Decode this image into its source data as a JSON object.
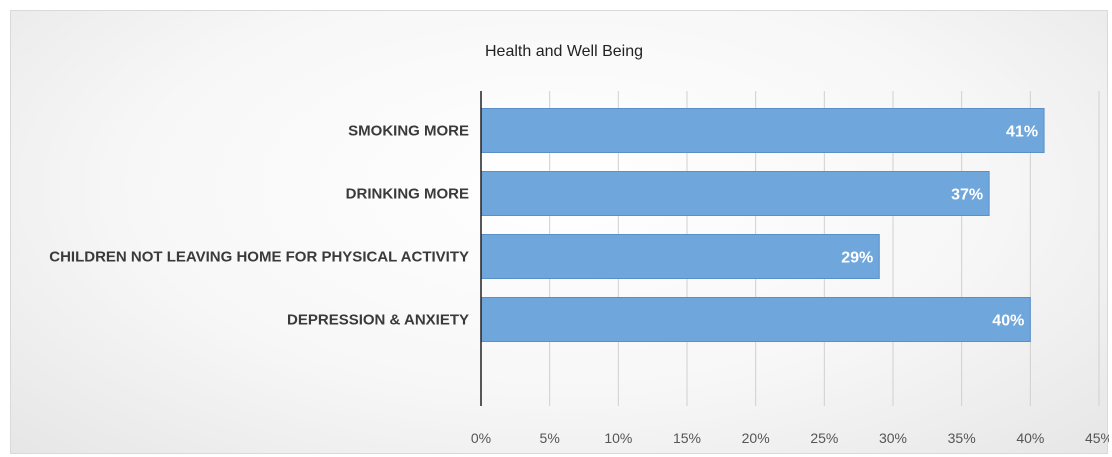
{
  "chart_data": {
    "type": "bar",
    "orientation": "horizontal",
    "title": "Health and Well Being",
    "categories": [
      "SMOKING MORE",
      "DRINKING MORE",
      "CHILDREN NOT LEAVING HOME FOR PHYSICAL ACTIVITY",
      "DEPRESSION & ANXIETY"
    ],
    "values": [
      41,
      37,
      29,
      40
    ],
    "data_labels": [
      "41%",
      "37%",
      "29%",
      "40%"
    ],
    "xlim": [
      0,
      45
    ],
    "x_ticks": [
      0,
      5,
      10,
      15,
      20,
      25,
      30,
      35,
      40,
      45
    ],
    "x_tick_labels": [
      "0%",
      "5%",
      "10%",
      "15%",
      "20%",
      "25%",
      "30%",
      "35%",
      "40%",
      "45%"
    ],
    "xlabel": "",
    "ylabel": "",
    "grid": true,
    "legend": "none",
    "bar_color": "#6fa6dc",
    "bar_edge_color": "#5b8fc7"
  }
}
